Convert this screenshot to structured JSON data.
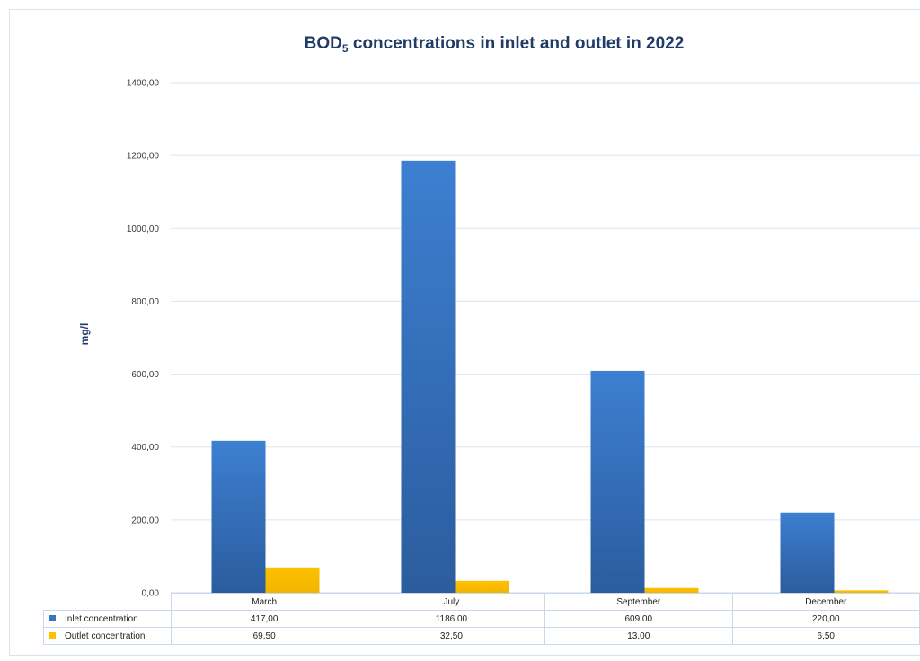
{
  "chart_data": {
    "type": "bar",
    "title_main": "BOD",
    "title_sub": "5",
    "title_rest": " concentrations in inlet and outlet in 2022",
    "ylabel": "mg/l",
    "xlabel": "",
    "ylim": [
      0,
      1400
    ],
    "yticks": [
      "0,00",
      "200,00",
      "400,00",
      "600,00",
      "800,00",
      "1000,00",
      "1200,00",
      "1400,00"
    ],
    "categories": [
      "March",
      "July",
      "September",
      "December"
    ],
    "series": [
      {
        "name": "Inlet concentration",
        "color": "#3a75c4",
        "values": [
          417,
          1186,
          609,
          220
        ],
        "labels": [
          "417,00",
          "1186,00",
          "609,00",
          "220,00"
        ]
      },
      {
        "name": "Outlet concentration",
        "color": "#ffc000",
        "values": [
          69.5,
          32.5,
          13,
          6.5
        ],
        "labels": [
          "69,50",
          "32,50",
          "13,00",
          "6,50"
        ]
      }
    ],
    "grid": true,
    "legend": "data table"
  }
}
